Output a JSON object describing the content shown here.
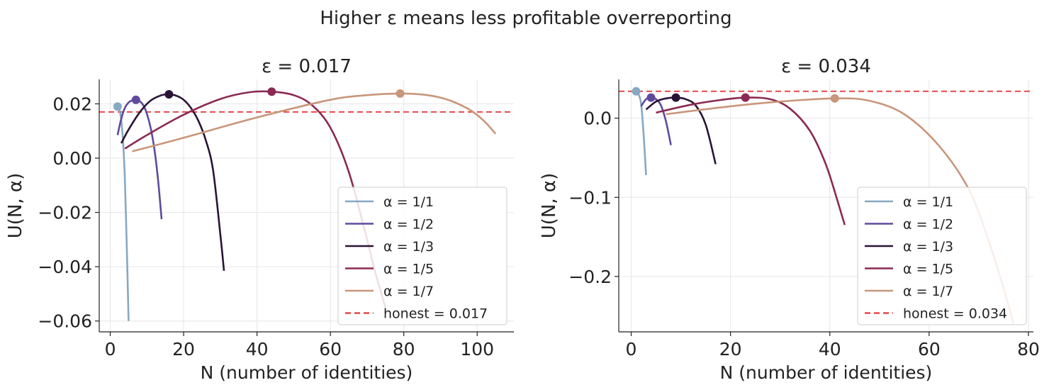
{
  "title": "Higher ε means less profitable overreporting",
  "chart_data": [
    {
      "type": "line",
      "title": "ε = 0.017",
      "xlabel": "N (number of identities)",
      "ylabel": "U(N, α)",
      "xlim": [
        -3,
        110
      ],
      "ylim": [
        -0.064,
        0.029
      ],
      "xticks": [
        0,
        20,
        40,
        60,
        80,
        100
      ],
      "xtick_labels": [
        "0",
        "20",
        "40",
        "60",
        "80",
        "100"
      ],
      "yticks": [
        -0.06,
        -0.04,
        -0.02,
        0.0,
        0.02
      ],
      "ytick_labels": [
        "−0.06",
        "−0.04",
        "−0.02",
        "0.00",
        "0.02"
      ],
      "grid": true,
      "legend_position": "lower-right",
      "honest": {
        "value": 0.017,
        "label": "honest  = 0.017",
        "color": "#e8474a"
      },
      "series": [
        {
          "name": "α = 1/1",
          "color": "#87a8c2",
          "points": [
            [
              2,
              0.019
            ],
            [
              2.5,
              0.018
            ],
            [
              3,
              0.014
            ],
            [
              3.5,
              0.006
            ],
            [
              4,
              -0.008
            ],
            [
              4.5,
              -0.032
            ],
            [
              5,
              -0.06
            ]
          ],
          "peak": [
            2,
            0.019
          ]
        },
        {
          "name": "α = 1/2",
          "color": "#5e4a9e",
          "points": [
            [
              2,
              0.0085
            ],
            [
              3,
              0.0145
            ],
            [
              4,
              0.0185
            ],
            [
              5,
              0.0205
            ],
            [
              6,
              0.0213
            ],
            [
              7,
              0.0215
            ],
            [
              8,
              0.021
            ],
            [
              9,
              0.0195
            ],
            [
              10,
              0.0163
            ],
            [
              11,
              0.0112
            ],
            [
              12,
              0.0036
            ],
            [
              13,
              -0.0075
            ],
            [
              14,
              -0.0225
            ]
          ],
          "peak": [
            7,
            0.0215
          ]
        },
        {
          "name": "α = 1/3",
          "color": "#2a1436",
          "points": [
            [
              3,
              0.0055
            ],
            [
              5,
              0.0105
            ],
            [
              8,
              0.0168
            ],
            [
              11,
              0.0212
            ],
            [
              14,
              0.0232
            ],
            [
              16,
              0.0235
            ],
            [
              18,
              0.023
            ],
            [
              20,
              0.0215
            ],
            [
              22,
              0.0185
            ],
            [
              24,
              0.0138
            ],
            [
              26,
              0.0068
            ],
            [
              28,
              -0.0042
            ],
            [
              30,
              -0.028
            ],
            [
              31,
              -0.0415
            ]
          ],
          "peak": [
            16,
            0.0235
          ]
        },
        {
          "name": "α = 1/5",
          "color": "#8b2a52",
          "points": [
            [
              4,
              0.0035
            ],
            [
              10,
              0.0085
            ],
            [
              20,
              0.016
            ],
            [
              30,
              0.0218
            ],
            [
              38,
              0.0243
            ],
            [
              44,
              0.0245
            ],
            [
              50,
              0.0232
            ],
            [
              55,
              0.0195
            ],
            [
              60,
              0.0112
            ],
            [
              65,
              -0.005
            ],
            [
              70,
              -0.03
            ],
            [
              72,
              -0.041
            ],
            [
              75,
              -0.055
            ]
          ],
          "peak": [
            44,
            0.0245
          ]
        },
        {
          "name": "α = 1/7",
          "color": "#c8967a",
          "points": [
            [
              6,
              0.0025
            ],
            [
              20,
              0.0075
            ],
            [
              40,
              0.015
            ],
            [
              60,
              0.0215
            ],
            [
              70,
              0.0232
            ],
            [
              79,
              0.0238
            ],
            [
              86,
              0.0233
            ],
            [
              92,
              0.0215
            ],
            [
              98,
              0.0178
            ],
            [
              102,
              0.0135
            ],
            [
              105,
              0.009
            ]
          ],
          "peak": [
            79,
            0.0238
          ]
        }
      ]
    },
    {
      "type": "line",
      "title": "ε = 0.034",
      "xlabel": "N (number of identities)",
      "ylabel": "U(N, α)",
      "xlim": [
        -2.5,
        81
      ],
      "ylim": [
        -0.27,
        0.049
      ],
      "xticks": [
        0,
        20,
        40,
        60,
        80
      ],
      "xtick_labels": [
        "0",
        "20",
        "40",
        "60",
        "80"
      ],
      "yticks": [
        -0.2,
        -0.1,
        0.0
      ],
      "ytick_labels": [
        "−0.2",
        "−0.1",
        "0.0"
      ],
      "grid": true,
      "legend_position": "lower-right",
      "honest": {
        "value": 0.034,
        "label": "honest  = 0.034",
        "color": "#e8474a"
      },
      "series": [
        {
          "name": "α = 1/1",
          "color": "#87a8c2",
          "points": [
            [
              1,
              0.034
            ],
            [
              1.5,
              0.03
            ],
            [
              2,
              0.018
            ],
            [
              2.5,
              -0.02
            ],
            [
              3,
              -0.072
            ]
          ],
          "peak": [
            1,
            0.034
          ]
        },
        {
          "name": "α = 1/2",
          "color": "#5e4a9e",
          "points": [
            [
              2,
              0.015
            ],
            [
              3,
              0.024
            ],
            [
              4,
              0.026
            ],
            [
              5,
              0.024
            ],
            [
              6,
              0.016
            ],
            [
              7,
              -0.004
            ],
            [
              8,
              -0.034
            ]
          ],
          "peak": [
            4,
            0.026
          ]
        },
        {
          "name": "α = 1/3",
          "color": "#2a1436",
          "points": [
            [
              3,
              0.011
            ],
            [
              5,
              0.021
            ],
            [
              7,
              0.025
            ],
            [
              9,
              0.026
            ],
            [
              11,
              0.024
            ],
            [
              13,
              0.016
            ],
            [
              15,
              -0.008
            ],
            [
              17,
              -0.058
            ]
          ],
          "peak": [
            9,
            0.026
          ]
        },
        {
          "name": "α = 1/5",
          "color": "#8b2a52",
          "points": [
            [
              5,
              0.007
            ],
            [
              12,
              0.017
            ],
            [
              18,
              0.023
            ],
            [
              23,
              0.026
            ],
            [
              28,
              0.024
            ],
            [
              32,
              0.012
            ],
            [
              36,
              -0.016
            ],
            [
              39,
              -0.055
            ],
            [
              41,
              -0.093
            ],
            [
              43,
              -0.135
            ]
          ],
          "peak": [
            23,
            0.026
          ]
        },
        {
          "name": "α = 1/7",
          "color": "#c8967a",
          "points": [
            [
              7,
              0.005
            ],
            [
              20,
              0.015
            ],
            [
              30,
              0.021
            ],
            [
              41,
              0.025
            ],
            [
              48,
              0.022
            ],
            [
              55,
              0.005
            ],
            [
              62,
              -0.035
            ],
            [
              68,
              -0.09
            ],
            [
              72,
              -0.155
            ],
            [
              75,
              -0.215
            ],
            [
              77,
              -0.26
            ]
          ],
          "peak": [
            41,
            0.025
          ]
        }
      ]
    }
  ]
}
